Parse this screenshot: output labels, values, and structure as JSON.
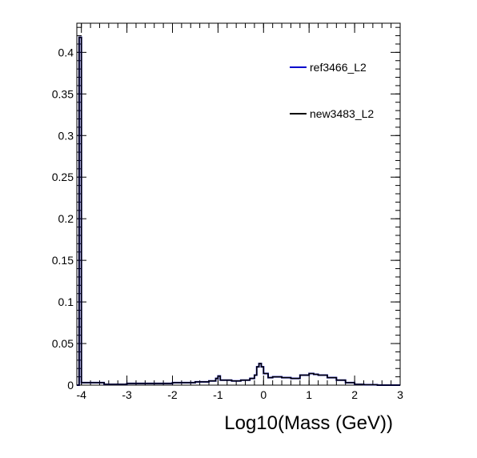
{
  "chart_data": {
    "type": "histogram",
    "xlabel": "Log10(Mass (GeV))",
    "ylabel": "",
    "xlim": [
      -4.1,
      3.0
    ],
    "ylim": [
      0,
      0.435
    ],
    "x_ticks": [
      "-4",
      "-3",
      "-2",
      "-1",
      "0",
      "1",
      "2",
      "3"
    ],
    "y_ticks": [
      "0",
      "0.05",
      "0.1",
      "0.15",
      "0.2",
      "0.25",
      "0.3",
      "0.35",
      "0.4"
    ],
    "grid": false,
    "legend_position": "top-right",
    "series": [
      {
        "name": "ref3466_L2",
        "color": "#0000cc",
        "points": [
          [
            -4.1,
            0
          ],
          [
            -4.05,
            0.418
          ],
          [
            -4.0,
            0.003
          ],
          [
            -3.5,
            0.001
          ],
          [
            -3.0,
            0.002
          ],
          [
            -2.5,
            0.002
          ],
          [
            -2.0,
            0.003
          ],
          [
            -1.5,
            0.004
          ],
          [
            -1.2,
            0.005
          ],
          [
            -1.05,
            0.008
          ],
          [
            -1.0,
            0.011
          ],
          [
            -0.95,
            0.006
          ],
          [
            -0.7,
            0.005
          ],
          [
            -0.5,
            0.006
          ],
          [
            -0.3,
            0.008
          ],
          [
            -0.2,
            0.012
          ],
          [
            -0.15,
            0.022
          ],
          [
            -0.1,
            0.026
          ],
          [
            -0.05,
            0.022
          ],
          [
            0.0,
            0.014
          ],
          [
            0.1,
            0.009
          ],
          [
            0.2,
            0.01
          ],
          [
            0.4,
            0.009
          ],
          [
            0.6,
            0.008
          ],
          [
            0.8,
            0.012
          ],
          [
            1.0,
            0.014
          ],
          [
            1.1,
            0.013
          ],
          [
            1.2,
            0.012
          ],
          [
            1.4,
            0.009
          ],
          [
            1.6,
            0.006
          ],
          [
            1.8,
            0.003
          ],
          [
            2.0,
            0.001
          ],
          [
            2.2,
            0.0005
          ],
          [
            2.5,
            0.0
          ],
          [
            3.0,
            0.0
          ]
        ]
      },
      {
        "name": "new3483_L2",
        "color": "#000000",
        "points": [
          [
            -4.1,
            0
          ],
          [
            -4.05,
            0.418
          ],
          [
            -4.0,
            0.003
          ],
          [
            -3.5,
            0.001
          ],
          [
            -3.0,
            0.002
          ],
          [
            -2.5,
            0.002
          ],
          [
            -2.0,
            0.003
          ],
          [
            -1.5,
            0.004
          ],
          [
            -1.2,
            0.005
          ],
          [
            -1.05,
            0.008
          ],
          [
            -1.0,
            0.011
          ],
          [
            -0.95,
            0.006
          ],
          [
            -0.7,
            0.005
          ],
          [
            -0.5,
            0.006
          ],
          [
            -0.3,
            0.008
          ],
          [
            -0.2,
            0.012
          ],
          [
            -0.15,
            0.022
          ],
          [
            -0.1,
            0.026
          ],
          [
            -0.05,
            0.022
          ],
          [
            0.0,
            0.014
          ],
          [
            0.1,
            0.009
          ],
          [
            0.2,
            0.01
          ],
          [
            0.4,
            0.009
          ],
          [
            0.6,
            0.008
          ],
          [
            0.8,
            0.012
          ],
          [
            1.0,
            0.014
          ],
          [
            1.1,
            0.013
          ],
          [
            1.2,
            0.012
          ],
          [
            1.4,
            0.009
          ],
          [
            1.6,
            0.006
          ],
          [
            1.8,
            0.003
          ],
          [
            2.0,
            0.001
          ],
          [
            2.2,
            0.0005
          ],
          [
            2.5,
            0.0
          ],
          [
            3.0,
            0.0
          ]
        ]
      }
    ]
  }
}
